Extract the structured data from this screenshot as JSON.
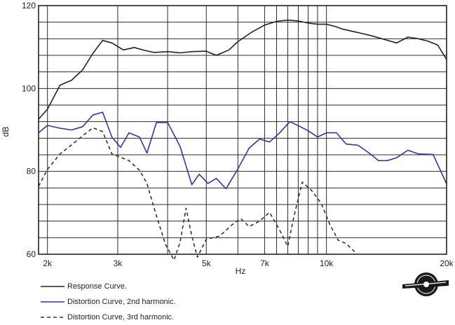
{
  "chart_data": {
    "type": "line",
    "title": "",
    "xlabel": "Hz",
    "ylabel": "dB",
    "xscale": "log",
    "xlim": [
      1900,
      20000
    ],
    "ylim": [
      60,
      120
    ],
    "grid": true,
    "xticks": [
      {
        "value": 2000,
        "label": "2k"
      },
      {
        "value": 3000,
        "label": "3k"
      },
      {
        "value": 5000,
        "label": "5k"
      },
      {
        "value": 7000,
        "label": "7k"
      },
      {
        "value": 10000,
        "label": "10k"
      },
      {
        "value": 20000,
        "label": "20k"
      }
    ],
    "yticks": [
      {
        "value": 60,
        "label": "60"
      },
      {
        "value": 80,
        "label": "80"
      },
      {
        "value": 100,
        "label": "100"
      },
      {
        "value": 120,
        "label": "120"
      }
    ],
    "series": [
      {
        "name": "Response Curve.",
        "color": "#222222",
        "dash": "solid",
        "points": [
          [
            1900,
            92.6
          ],
          [
            2000,
            95.0
          ],
          [
            2150,
            100.8
          ],
          [
            2300,
            102.0
          ],
          [
            2450,
            104.5
          ],
          [
            2600,
            108.5
          ],
          [
            2750,
            111.6
          ],
          [
            2900,
            111.0
          ],
          [
            3100,
            109.3
          ],
          [
            3300,
            109.9
          ],
          [
            3500,
            109.2
          ],
          [
            3700,
            108.7
          ],
          [
            4000,
            108.9
          ],
          [
            4300,
            108.6
          ],
          [
            4600,
            108.9
          ],
          [
            5000,
            109.0
          ],
          [
            5300,
            108.0
          ],
          [
            5700,
            109.3
          ],
          [
            6000,
            111.3
          ],
          [
            6500,
            113.6
          ],
          [
            7000,
            115.3
          ],
          [
            7500,
            116.2
          ],
          [
            8000,
            116.5
          ],
          [
            8500,
            116.3
          ],
          [
            9000,
            115.8
          ],
          [
            9500,
            115.5
          ],
          [
            10000,
            115.5
          ],
          [
            10500,
            115.0
          ],
          [
            11000,
            114.3
          ],
          [
            12000,
            113.5
          ],
          [
            13000,
            112.7
          ],
          [
            14000,
            111.8
          ],
          [
            15000,
            111.0
          ],
          [
            16000,
            112.4
          ],
          [
            17000,
            112.0
          ],
          [
            18000,
            111.4
          ],
          [
            19000,
            110.5
          ],
          [
            20000,
            107.0
          ]
        ]
      },
      {
        "name": "Distortion Curve, 2nd harmonic.",
        "color": "#2a3aa0",
        "dash": "solid",
        "points": [
          [
            1900,
            89.3
          ],
          [
            2000,
            91.1
          ],
          [
            2150,
            90.4
          ],
          [
            2300,
            90.0
          ],
          [
            2450,
            90.8
          ],
          [
            2600,
            93.6
          ],
          [
            2750,
            94.3
          ],
          [
            2900,
            88.3
          ],
          [
            3050,
            85.8
          ],
          [
            3200,
            89.3
          ],
          [
            3400,
            88.3
          ],
          [
            3550,
            84.4
          ],
          [
            3750,
            91.8
          ],
          [
            4000,
            91.8
          ],
          [
            4300,
            86.0
          ],
          [
            4600,
            76.8
          ],
          [
            4800,
            79.3
          ],
          [
            5050,
            77.1
          ],
          [
            5300,
            78.3
          ],
          [
            5600,
            75.8
          ],
          [
            6000,
            80.6
          ],
          [
            6400,
            85.6
          ],
          [
            6800,
            87.8
          ],
          [
            7200,
            87.1
          ],
          [
            7600,
            89.1
          ],
          [
            8100,
            92.0
          ],
          [
            8600,
            90.8
          ],
          [
            9000,
            89.8
          ],
          [
            9500,
            88.3
          ],
          [
            10000,
            89.3
          ],
          [
            10600,
            89.3
          ],
          [
            11200,
            86.6
          ],
          [
            12000,
            86.3
          ],
          [
            12800,
            84.4
          ],
          [
            13500,
            82.6
          ],
          [
            14200,
            82.6
          ],
          [
            15000,
            83.3
          ],
          [
            16000,
            85.1
          ],
          [
            17000,
            84.2
          ],
          [
            18500,
            84.1
          ],
          [
            20000,
            77.0
          ]
        ]
      },
      {
        "name": "Distortion Curve, 3rd harmonic.",
        "color": "#333333",
        "dash": "dashed",
        "points": [
          [
            1900,
            76.4
          ],
          [
            2000,
            80.5
          ],
          [
            2150,
            84.2
          ],
          [
            2300,
            86.4
          ],
          [
            2450,
            88.6
          ],
          [
            2600,
            90.5
          ],
          [
            2750,
            89.6
          ],
          [
            2900,
            84.2
          ],
          [
            3050,
            83.4
          ],
          [
            3200,
            82.6
          ],
          [
            3400,
            80.3
          ],
          [
            3550,
            77.1
          ],
          [
            3750,
            69.3
          ],
          [
            3950,
            62.4
          ],
          [
            4150,
            58.6
          ],
          [
            4300,
            62.9
          ],
          [
            4450,
            71.1
          ],
          [
            4600,
            64.4
          ],
          [
            4750,
            59.3
          ],
          [
            5000,
            63.6
          ],
          [
            5400,
            64.4
          ],
          [
            5800,
            67.1
          ],
          [
            6100,
            68.6
          ],
          [
            6400,
            66.7
          ],
          [
            6800,
            68.0
          ],
          [
            7200,
            70.1
          ],
          [
            7600,
            66.2
          ],
          [
            8000,
            61.9
          ],
          [
            8300,
            69.3
          ],
          [
            8700,
            77.4
          ],
          [
            9200,
            75.3
          ],
          [
            9700,
            72.3
          ],
          [
            10200,
            67.2
          ],
          [
            10700,
            63.4
          ],
          [
            11200,
            62.6
          ],
          [
            11800,
            60.5
          ]
        ]
      }
    ],
    "legend_position": "bottom-left"
  }
}
